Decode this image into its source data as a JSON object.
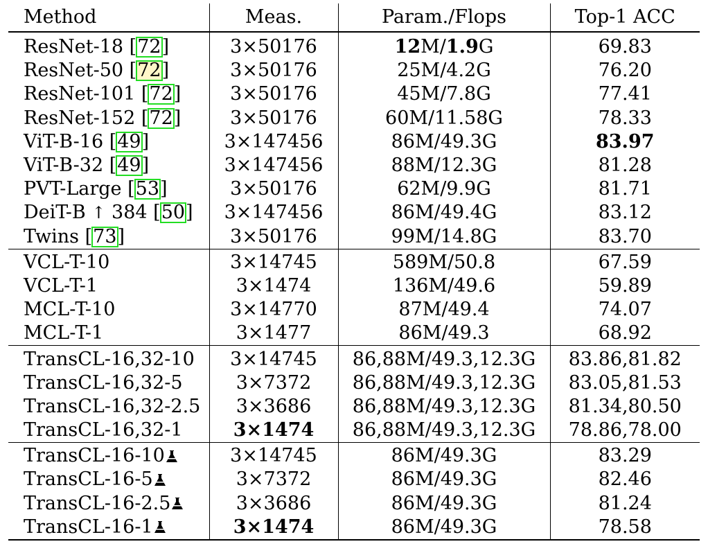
{
  "headers": {
    "method": "Method",
    "meas": "Meas.",
    "param": "Param./Flops",
    "acc": "Top-1 ACC"
  },
  "rows": [
    {
      "method": "ResNet-18 [",
      "cite": "72",
      "method_tail": "]",
      "meas": "3×50176",
      "param_b1": "12",
      "param_m": "M/",
      "param_b2": "1.9",
      "param_g": "G",
      "acc": "69.83",
      "acc_bold": false,
      "cite_highlight": false
    },
    {
      "method": "ResNet-50 [",
      "cite": "72",
      "method_tail": "]",
      "meas": "3×50176",
      "param": "25M/4.2G",
      "acc": "76.20",
      "cite_highlight": true
    },
    {
      "method": "ResNet-101 [",
      "cite": "72",
      "method_tail": "]",
      "meas": "3×50176",
      "param": "45M/7.8G",
      "acc": "77.41"
    },
    {
      "method": "ResNet-152 [",
      "cite": "72",
      "method_tail": "]",
      "meas": "3×50176",
      "param": "60M/11.58G",
      "acc": "78.33"
    },
    {
      "method": "ViT-B-16 [",
      "cite": "49",
      "method_tail": "]",
      "meas": "3×147456",
      "param": "86M/49.3G",
      "acc": "83.97",
      "acc_bold": true
    },
    {
      "method": "ViT-B-32 [",
      "cite": "49",
      "method_tail": "]",
      "meas": "3×147456",
      "param": "88M/12.3G",
      "acc": "81.28"
    },
    {
      "method": "PVT-Large [",
      "cite": "53",
      "method_tail": "]",
      "meas": "3×50176",
      "param": "62M/9.9G",
      "acc": "81.71"
    },
    {
      "method_pre": "DeiT-B ",
      "arrow": "↑",
      "method_post": " 384 [",
      "cite": "50",
      "method_tail": "]",
      "meas": "3×147456",
      "param": "86M/49.4G",
      "acc": "83.12"
    },
    {
      "method": "Twins [",
      "cite": "73",
      "method_tail": "]",
      "meas": "3×50176",
      "param": "99M/14.8G",
      "acc": "83.70"
    },
    {
      "method": "VCL-T-10",
      "meas": "3×14745",
      "param": "589M/50.8",
      "acc": "67.59"
    },
    {
      "method": "VCL-T-1",
      "meas": "3×1474",
      "param": "136M/49.6",
      "acc": "59.89"
    },
    {
      "method": "MCL-T-10",
      "meas": "3×14770",
      "param": "87M/49.4",
      "acc": "74.07"
    },
    {
      "method": "MCL-T-1",
      "meas": "3×1477",
      "param": "86M/49.3",
      "acc": "68.92"
    },
    {
      "method": "TransCL-16,32-10",
      "meas": "3×14745",
      "param": "86,88M/49.3,12.3G",
      "acc": "83.86,81.82"
    },
    {
      "method": "TransCL-16,32-5",
      "meas": "3×7372",
      "param": "86,88M/49.3,12.3G",
      "acc": "83.05,81.53"
    },
    {
      "method": "TransCL-16,32-2.5",
      "meas": "3×3686",
      "param": "86,88M/49.3,12.3G",
      "acc": "81.34,80.50"
    },
    {
      "method": "TransCL-16,32-1",
      "meas": "3×1474",
      "meas_bold": true,
      "param": "86,88M/49.3,12.3G",
      "acc": "78.86,78.00"
    },
    {
      "method": "TransCL-16-10",
      "flask": true,
      "meas": "3×14745",
      "param": "86M/49.3G",
      "acc": "83.29"
    },
    {
      "method": "TransCL-16-5",
      "flask": true,
      "meas": "3×7372",
      "param": "86M/49.3G",
      "acc": "82.46"
    },
    {
      "method": "TransCL-16-2.5",
      "flask": true,
      "meas": "3×3686",
      "param": "86M/49.3G",
      "acc": "81.24"
    },
    {
      "method": "TransCL-16-1",
      "flask": true,
      "meas": "3×1474",
      "meas_bold": true,
      "param": "86M/49.3G",
      "acc": "78.58"
    }
  ],
  "colors": {
    "cite_box": "#22dd22",
    "cite_highlight": "#fff7c8"
  },
  "icons": {
    "flask": "flask-icon"
  }
}
